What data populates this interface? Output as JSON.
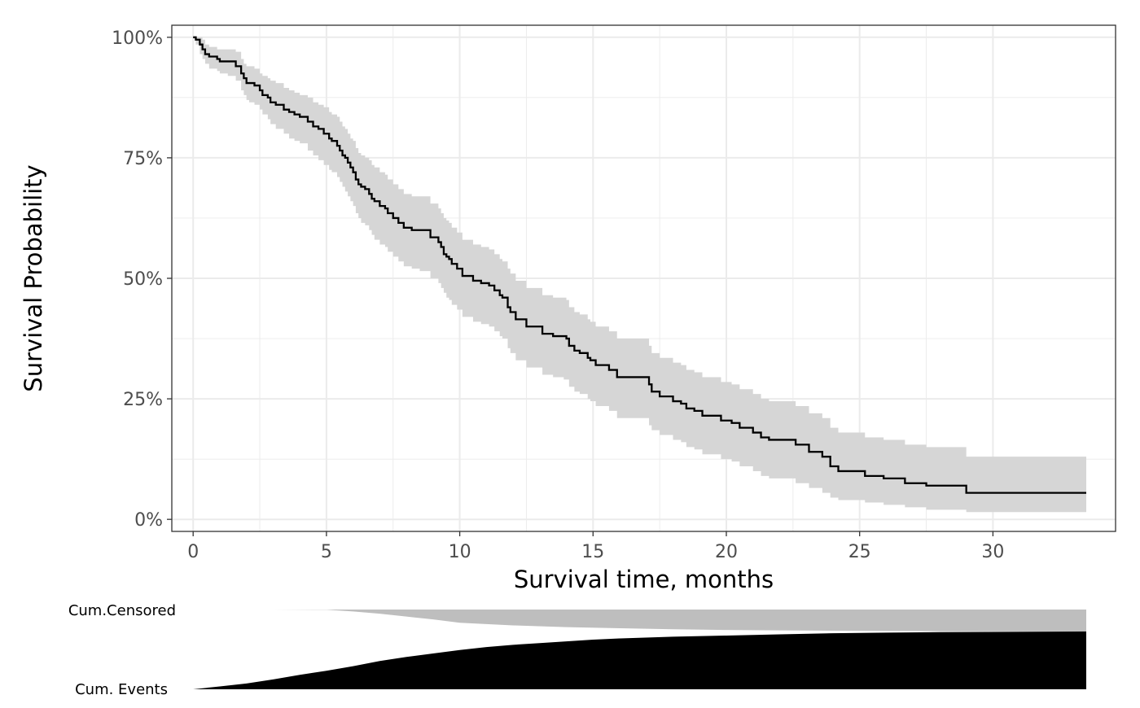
{
  "chart_data": {
    "type": "line",
    "subtype": "kaplan-meier survival curve with confidence band and cumulative risk table",
    "xlabel": "Survival time, months",
    "ylabel": "Survival Probability",
    "xlim": [
      -0.8,
      34.6
    ],
    "ylim": [
      -0.025,
      1.025
    ],
    "x_ticks": [
      0,
      5,
      10,
      15,
      20,
      25,
      30
    ],
    "x_tick_labels": [
      "0",
      "5",
      "10",
      "15",
      "20",
      "25",
      "30"
    ],
    "y_ticks": [
      0,
      0.25,
      0.5,
      0.75,
      1
    ],
    "y_tick_labels": [
      "0%",
      "25%",
      "50%",
      "75%",
      "100%"
    ],
    "grid": true,
    "legend": "none",
    "colors": {
      "line": "#000000",
      "band": "#d6d6d6",
      "grid": "#ebebeb",
      "panel_border": "#333333",
      "censored_area": "#bebebe",
      "events_area": "#000000"
    },
    "series": [
      {
        "x": [
          0,
          0.1,
          0.25,
          0.35,
          0.45,
          0.6,
          0.9,
          1.0,
          1.3,
          1.6,
          1.8,
          1.9,
          2.0,
          2.1,
          2.3,
          2.5,
          2.6,
          2.8,
          2.9,
          3.1,
          3.4,
          3.6,
          3.8,
          4.0,
          4.3,
          4.5,
          4.7,
          4.9,
          5.1,
          5.2,
          5.4,
          5.5,
          5.6,
          5.7,
          5.8,
          5.9,
          6.0,
          6.1,
          6.2,
          6.3,
          6.45,
          6.6,
          6.7,
          6.8,
          7.0,
          7.2,
          7.3,
          7.5,
          7.7,
          7.9,
          8.2,
          8.5,
          8.9,
          9.2,
          9.3,
          9.4,
          9.5,
          9.6,
          9.7,
          9.9,
          10.1,
          10.5,
          10.8,
          11.1,
          11.3,
          11.5,
          11.6,
          11.8,
          11.9,
          12.1,
          12.5,
          12.7,
          13.1,
          13.5,
          13.9,
          14.0,
          14.1,
          14.3,
          14.5,
          14.8,
          14.9,
          15.1,
          15.6,
          15.9,
          16.7,
          17.1,
          17.2,
          17.5,
          18.0,
          18.3,
          18.5,
          18.8,
          19.1,
          19.8,
          20.2,
          20.5,
          21.0,
          21.3,
          21.6,
          22.6,
          23.1,
          23.6,
          23.9,
          24.2,
          25.2,
          25.9,
          26.7,
          27.5,
          29.0,
          33.5
        ],
        "y": [
          1,
          0.995,
          0.985,
          0.975,
          0.965,
          0.96,
          0.955,
          0.95,
          0.95,
          0.94,
          0.925,
          0.915,
          0.905,
          0.905,
          0.9,
          0.89,
          0.88,
          0.875,
          0.865,
          0.86,
          0.85,
          0.845,
          0.84,
          0.835,
          0.825,
          0.815,
          0.81,
          0.8,
          0.79,
          0.785,
          0.775,
          0.765,
          0.755,
          0.75,
          0.74,
          0.73,
          0.72,
          0.705,
          0.695,
          0.69,
          0.685,
          0.675,
          0.665,
          0.66,
          0.65,
          0.645,
          0.635,
          0.625,
          0.615,
          0.605,
          0.6,
          0.6,
          0.585,
          0.575,
          0.565,
          0.55,
          0.545,
          0.54,
          0.53,
          0.52,
          0.505,
          0.495,
          0.49,
          0.485,
          0.475,
          0.465,
          0.46,
          0.44,
          0.43,
          0.415,
          0.4,
          0.4,
          0.385,
          0.38,
          0.38,
          0.375,
          0.36,
          0.35,
          0.345,
          0.335,
          0.33,
          0.32,
          0.31,
          0.295,
          0.295,
          0.28,
          0.265,
          0.255,
          0.245,
          0.24,
          0.23,
          0.225,
          0.215,
          0.205,
          0.2,
          0.19,
          0.18,
          0.17,
          0.165,
          0.155,
          0.14,
          0.13,
          0.11,
          0.1,
          0.09,
          0.085,
          0.075,
          0.07,
          0.055,
          0.055
        ],
        "lower": [
          1,
          0.985,
          0.965,
          0.955,
          0.945,
          0.935,
          0.93,
          0.925,
          0.92,
          0.91,
          0.89,
          0.88,
          0.87,
          0.865,
          0.86,
          0.85,
          0.84,
          0.83,
          0.82,
          0.81,
          0.8,
          0.79,
          0.785,
          0.78,
          0.765,
          0.755,
          0.745,
          0.735,
          0.725,
          0.72,
          0.71,
          0.7,
          0.69,
          0.68,
          0.67,
          0.66,
          0.65,
          0.635,
          0.625,
          0.615,
          0.61,
          0.6,
          0.59,
          0.58,
          0.57,
          0.565,
          0.555,
          0.545,
          0.535,
          0.525,
          0.52,
          0.515,
          0.5,
          0.49,
          0.48,
          0.47,
          0.46,
          0.455,
          0.445,
          0.435,
          0.42,
          0.41,
          0.405,
          0.4,
          0.39,
          0.38,
          0.375,
          0.355,
          0.345,
          0.33,
          0.315,
          0.315,
          0.3,
          0.295,
          0.29,
          0.29,
          0.275,
          0.265,
          0.26,
          0.25,
          0.245,
          0.235,
          0.225,
          0.21,
          0.21,
          0.195,
          0.185,
          0.175,
          0.165,
          0.16,
          0.15,
          0.145,
          0.135,
          0.125,
          0.12,
          0.11,
          0.1,
          0.09,
          0.085,
          0.075,
          0.065,
          0.055,
          0.045,
          0.04,
          0.035,
          0.03,
          0.025,
          0.02,
          0.015,
          0.015
        ],
        "upper": [
          1,
          1,
          1,
          0.995,
          0.985,
          0.98,
          0.975,
          0.975,
          0.975,
          0.97,
          0.955,
          0.945,
          0.94,
          0.94,
          0.935,
          0.925,
          0.92,
          0.915,
          0.91,
          0.905,
          0.895,
          0.89,
          0.885,
          0.88,
          0.875,
          0.865,
          0.86,
          0.855,
          0.845,
          0.84,
          0.835,
          0.825,
          0.815,
          0.81,
          0.8,
          0.79,
          0.785,
          0.77,
          0.76,
          0.755,
          0.75,
          0.745,
          0.735,
          0.73,
          0.72,
          0.715,
          0.705,
          0.695,
          0.685,
          0.675,
          0.67,
          0.67,
          0.655,
          0.645,
          0.635,
          0.625,
          0.62,
          0.615,
          0.605,
          0.595,
          0.58,
          0.57,
          0.565,
          0.56,
          0.55,
          0.54,
          0.535,
          0.52,
          0.51,
          0.495,
          0.48,
          0.48,
          0.465,
          0.46,
          0.46,
          0.455,
          0.44,
          0.43,
          0.425,
          0.415,
          0.41,
          0.4,
          0.39,
          0.375,
          0.375,
          0.36,
          0.345,
          0.335,
          0.325,
          0.32,
          0.31,
          0.305,
          0.295,
          0.285,
          0.28,
          0.27,
          0.26,
          0.25,
          0.245,
          0.235,
          0.22,
          0.21,
          0.19,
          0.18,
          0.17,
          0.165,
          0.155,
          0.15,
          0.13,
          0.13
        ]
      }
    ],
    "risk_table": {
      "rows": [
        {
          "label": "Cum.Censored",
          "x": [
            3,
            5,
            6,
            7,
            8,
            9,
            10,
            12,
            14,
            16,
            18,
            20,
            22,
            25,
            28,
            33.5
          ],
          "fraction": [
            0,
            0.01,
            0.09,
            0.19,
            0.32,
            0.45,
            0.6,
            0.72,
            0.8,
            0.85,
            0.9,
            0.93,
            0.95,
            0.97,
            0.99,
            1
          ]
        },
        {
          "label": "Cum. Events",
          "x": [
            0,
            1,
            2,
            3,
            4,
            5,
            6,
            7,
            8,
            9,
            10,
            11,
            12,
            13,
            14,
            15,
            16,
            18,
            20,
            22,
            24,
            26,
            28,
            33.5
          ],
          "fraction": [
            0,
            0.05,
            0.1,
            0.17,
            0.25,
            0.32,
            0.4,
            0.49,
            0.56,
            0.62,
            0.68,
            0.73,
            0.77,
            0.8,
            0.83,
            0.86,
            0.88,
            0.91,
            0.93,
            0.95,
            0.97,
            0.98,
            0.99,
            1
          ]
        }
      ]
    }
  }
}
